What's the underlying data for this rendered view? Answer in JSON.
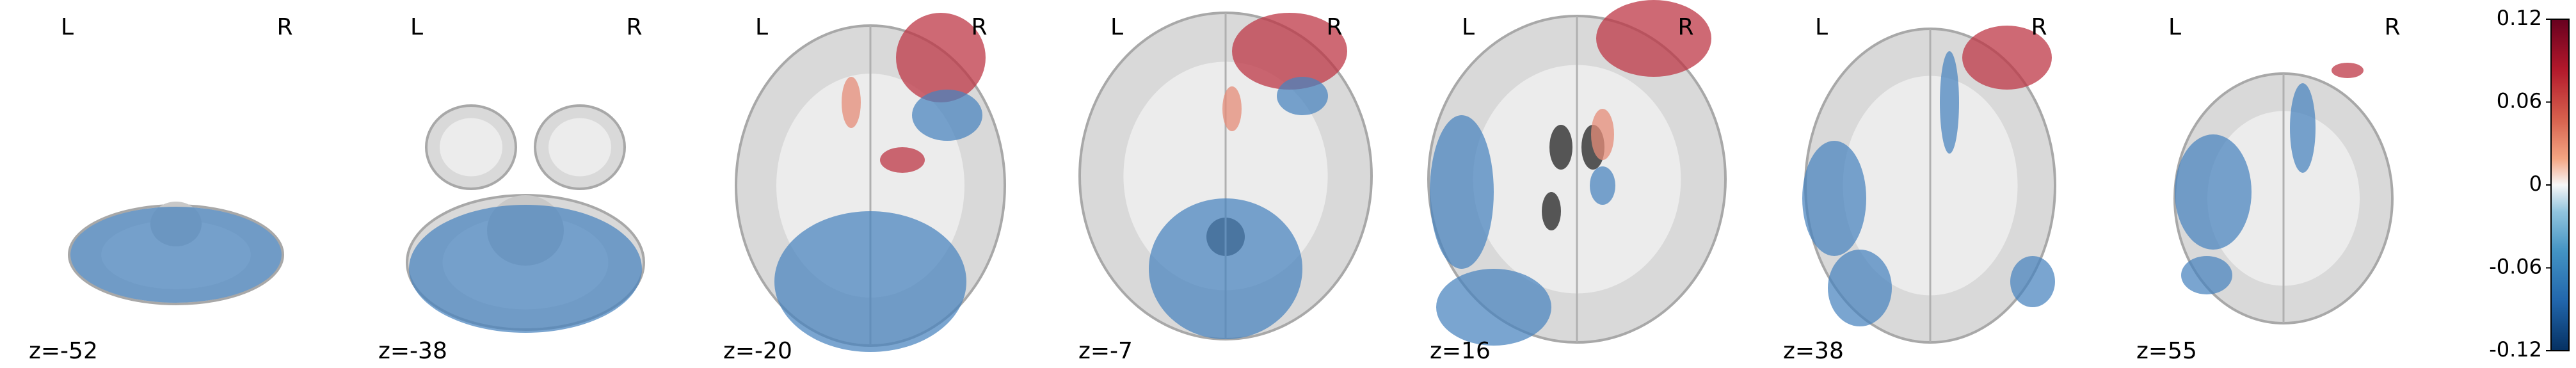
{
  "chart_data": {
    "type": "stat-map-slices",
    "slices": [
      {
        "label": "z=-52",
        "left": "L",
        "right": "R"
      },
      {
        "label": "z=-38",
        "left": "L",
        "right": "R"
      },
      {
        "label": "z=-20",
        "left": "L",
        "right": "R"
      },
      {
        "label": "z=-7",
        "left": "L",
        "right": "R"
      },
      {
        "label": "z=16",
        "left": "L",
        "right": "R"
      },
      {
        "label": "z=38",
        "left": "L",
        "right": "R"
      },
      {
        "label": "z=55",
        "left": "L",
        "right": "R"
      }
    ],
    "colorbar": {
      "colormap": "RdBu_r",
      "lim": [
        -0.12,
        0.12
      ],
      "ticks": [
        -0.12,
        -0.06,
        0,
        0.06,
        0.12
      ]
    }
  }
}
